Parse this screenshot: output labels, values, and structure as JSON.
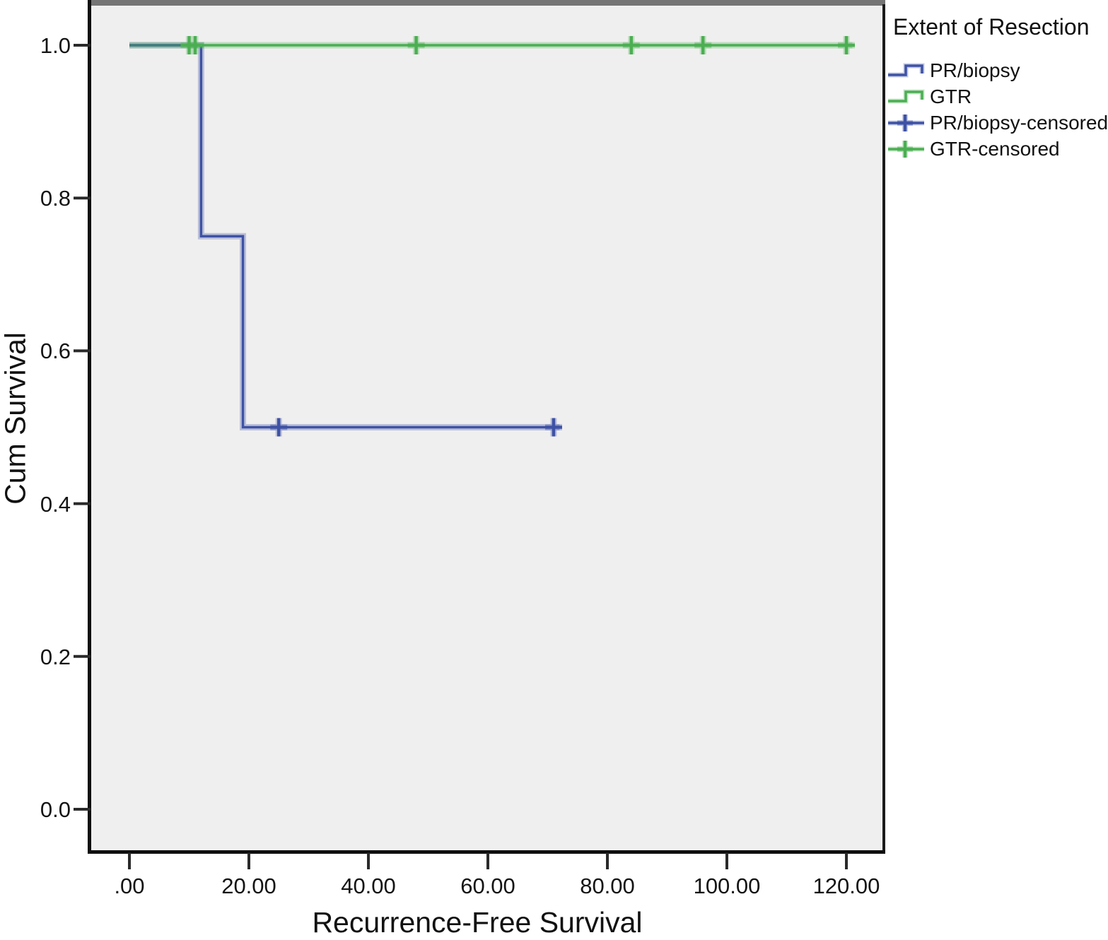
{
  "chart_data": {
    "type": "line",
    "subtype": "kaplan-meier-step",
    "title": "",
    "xlabel": "Recurrence-Free Survival",
    "ylabel": "Cum Survival",
    "xlim": [
      0,
      120
    ],
    "ylim": [
      0.0,
      1.0
    ],
    "grid": false,
    "x_axis": {
      "tick_values": [
        0,
        20,
        40,
        60,
        80,
        100,
        120
      ],
      "tick_labels": [
        ".00",
        "20.00",
        "40.00",
        "60.00",
        "80.00",
        "100.00",
        "120.00"
      ]
    },
    "y_axis": {
      "tick_values": [
        0.0,
        0.2,
        0.4,
        0.6,
        0.8,
        1.0
      ],
      "tick_labels": [
        "0.0",
        "0.2",
        "0.4",
        "0.6",
        "0.8",
        "1.0"
      ]
    },
    "series": [
      {
        "name": "PR/biopsy",
        "color": "#3E52A5",
        "steps": [
          [
            0,
            1.0
          ],
          [
            12,
            1.0
          ],
          [
            12,
            0.75
          ],
          [
            19,
            0.75
          ],
          [
            19,
            0.5
          ],
          [
            72,
            0.5
          ]
        ],
        "censored": [
          [
            25,
            0.5
          ],
          [
            71,
            0.5
          ]
        ]
      },
      {
        "name": "GTR",
        "color": "#4BAF52",
        "steps": [
          [
            0,
            1.0
          ],
          [
            121,
            1.0
          ]
        ],
        "censored": [
          [
            10,
            1.0
          ],
          [
            11,
            1.0
          ],
          [
            48,
            1.0
          ],
          [
            84,
            1.0
          ],
          [
            96,
            1.0
          ],
          [
            120,
            1.0
          ]
        ]
      }
    ]
  },
  "legend": {
    "title": "Extent of Resection",
    "position": "top-right",
    "items": [
      {
        "label": "PR/biopsy",
        "color": "#3E52A5",
        "symbol": "step-line"
      },
      {
        "label": "GTR",
        "color": "#4BAF52",
        "symbol": "step-line"
      },
      {
        "label": "PR/biopsy-censored",
        "color": "#3E52A5",
        "symbol": "censor-plus"
      },
      {
        "label": "GTR-censored",
        "color": "#4BAF52",
        "symbol": "censor-plus"
      }
    ]
  },
  "colors": {
    "plot_background": "#f0efef",
    "frame_top": "#757575",
    "frame_sides": "#0f0f0f",
    "overlap_teal_hint": "#458c7e",
    "tick": "#2a2a2a",
    "text": "#111111"
  }
}
